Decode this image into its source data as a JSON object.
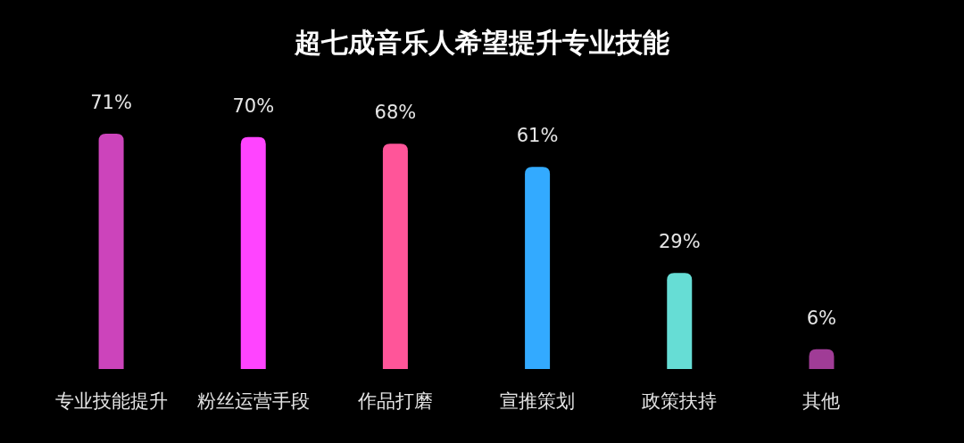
{
  "chart_data": {
    "type": "bar",
    "title": "超七成音乐人希望提升专业技能",
    "categories": [
      "专业技能提升",
      "粉丝运营手段",
      "作品打磨",
      "宣推策划",
      "政策扶持",
      "其他"
    ],
    "values": [
      71,
      70,
      68,
      61,
      29,
      6
    ],
    "colors": [
      "#cc44bb",
      "#ff44ff",
      "#ff5599",
      "#33aaff",
      "#66ddd5",
      "#a03c96"
    ],
    "value_labels": [
      "71%",
      "70%",
      "68%",
      "61%",
      "29%",
      "6%"
    ]
  }
}
